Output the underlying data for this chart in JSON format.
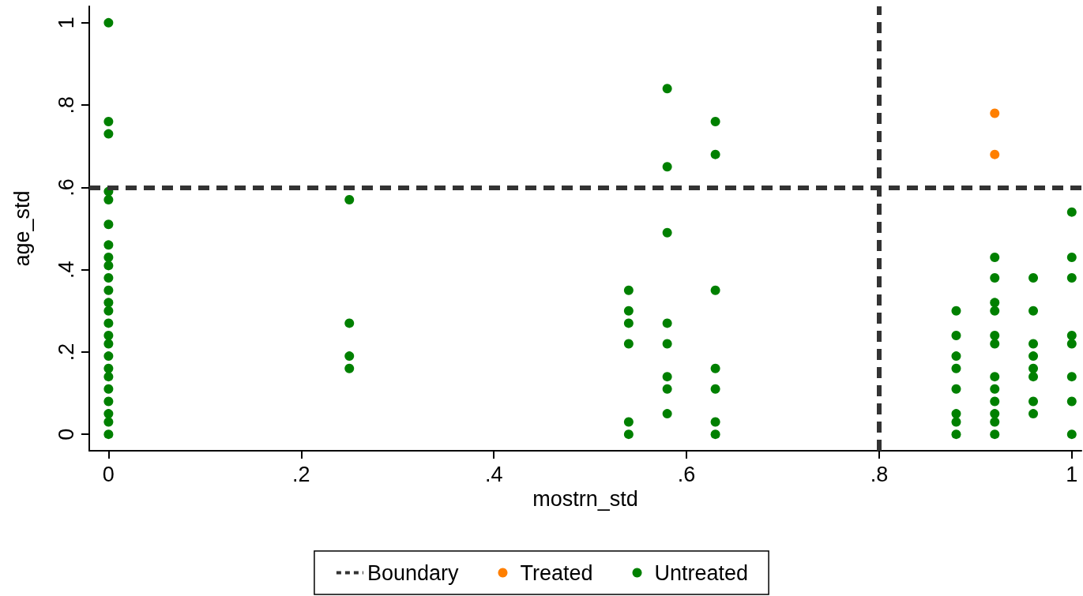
{
  "chart_data": {
    "type": "scatter",
    "xlabel": "mostrn_std",
    "ylabel": "age_std",
    "xlim": [
      -0.02,
      1.01
    ],
    "ylim": [
      -0.04,
      1.04
    ],
    "xticks": [
      0,
      {
        "value": 0.2,
        "label": ".2"
      },
      {
        "value": 0.4,
        "label": ".4"
      },
      {
        "value": 0.6,
        "label": ".6"
      },
      {
        "value": 0.8,
        "label": ".8"
      },
      1
    ],
    "yticks": [
      0,
      {
        "value": 0.2,
        "label": ".2"
      },
      {
        "value": 0.4,
        "label": ".4"
      },
      {
        "value": 0.6,
        "label": ".6"
      },
      {
        "value": 0.8,
        "label": ".8"
      },
      1
    ],
    "grid": false,
    "legend": "bottom",
    "marker": "circle",
    "ref_lines": [
      {
        "axis": "x",
        "value": 0.8,
        "label": "Boundary",
        "color": "#333333",
        "line_style": "dashed"
      },
      {
        "axis": "y",
        "value": 0.6,
        "color": "#333333",
        "line_style": "dashed"
      }
    ],
    "series": [
      {
        "name": "Treated",
        "color": "#ff7f00",
        "x": [
          0.92,
          0.92
        ],
        "values": [
          0.78,
          0.68
        ]
      },
      {
        "name": "Untreated",
        "color": "#008000",
        "x": [
          0,
          0,
          0,
          0,
          0,
          0,
          0,
          0,
          0,
          0,
          0,
          0,
          0,
          0,
          0,
          0,
          0,
          0,
          0,
          0,
          0,
          0,
          0,
          0,
          0.25,
          0.25,
          0.25,
          0.25,
          0.54,
          0.54,
          0.54,
          0.54,
          0.54,
          0.54,
          0.58,
          0.58,
          0.58,
          0.58,
          0.58,
          0.58,
          0.58,
          0.58,
          0.63,
          0.63,
          0.63,
          0.63,
          0.63,
          0.63,
          0.63,
          0.88,
          0.88,
          0.88,
          0.88,
          0.88,
          0.88,
          0.88,
          0.88,
          0.92,
          0.92,
          0.92,
          0.92,
          0.92,
          0.92,
          0.92,
          0.92,
          0.92,
          0.92,
          0.92,
          0.92,
          0.96,
          0.96,
          0.96,
          0.96,
          0.96,
          0.96,
          0.96,
          0.96,
          1,
          1,
          1,
          1,
          1,
          1,
          1,
          1
        ],
        "values": [
          1,
          0.76,
          0.73,
          0.59,
          0.57,
          0.51,
          0.46,
          0.43,
          0.41,
          0.38,
          0.35,
          0.32,
          0.3,
          0.27,
          0.24,
          0.22,
          0.19,
          0.16,
          0.14,
          0.11,
          0.08,
          0.05,
          0.03,
          0,
          0.57,
          0.27,
          0.19,
          0.16,
          0.35,
          0.3,
          0.27,
          0.22,
          0.03,
          0,
          0.84,
          0.65,
          0.49,
          0.27,
          0.22,
          0.14,
          0.11,
          0.05,
          0.76,
          0.68,
          0.35,
          0.16,
          0.11,
          0.03,
          0,
          0.3,
          0.24,
          0.19,
          0.16,
          0.11,
          0.05,
          0.03,
          0,
          0.43,
          0.38,
          0.32,
          0.3,
          0.24,
          0.22,
          0.14,
          0.11,
          0.08,
          0.05,
          0.03,
          0,
          0.38,
          0.3,
          0.22,
          0.19,
          0.16,
          0.14,
          0.08,
          0.05,
          0.54,
          0.43,
          0.38,
          0.24,
          0.22,
          0.14,
          0.08,
          0
        ]
      }
    ]
  }
}
